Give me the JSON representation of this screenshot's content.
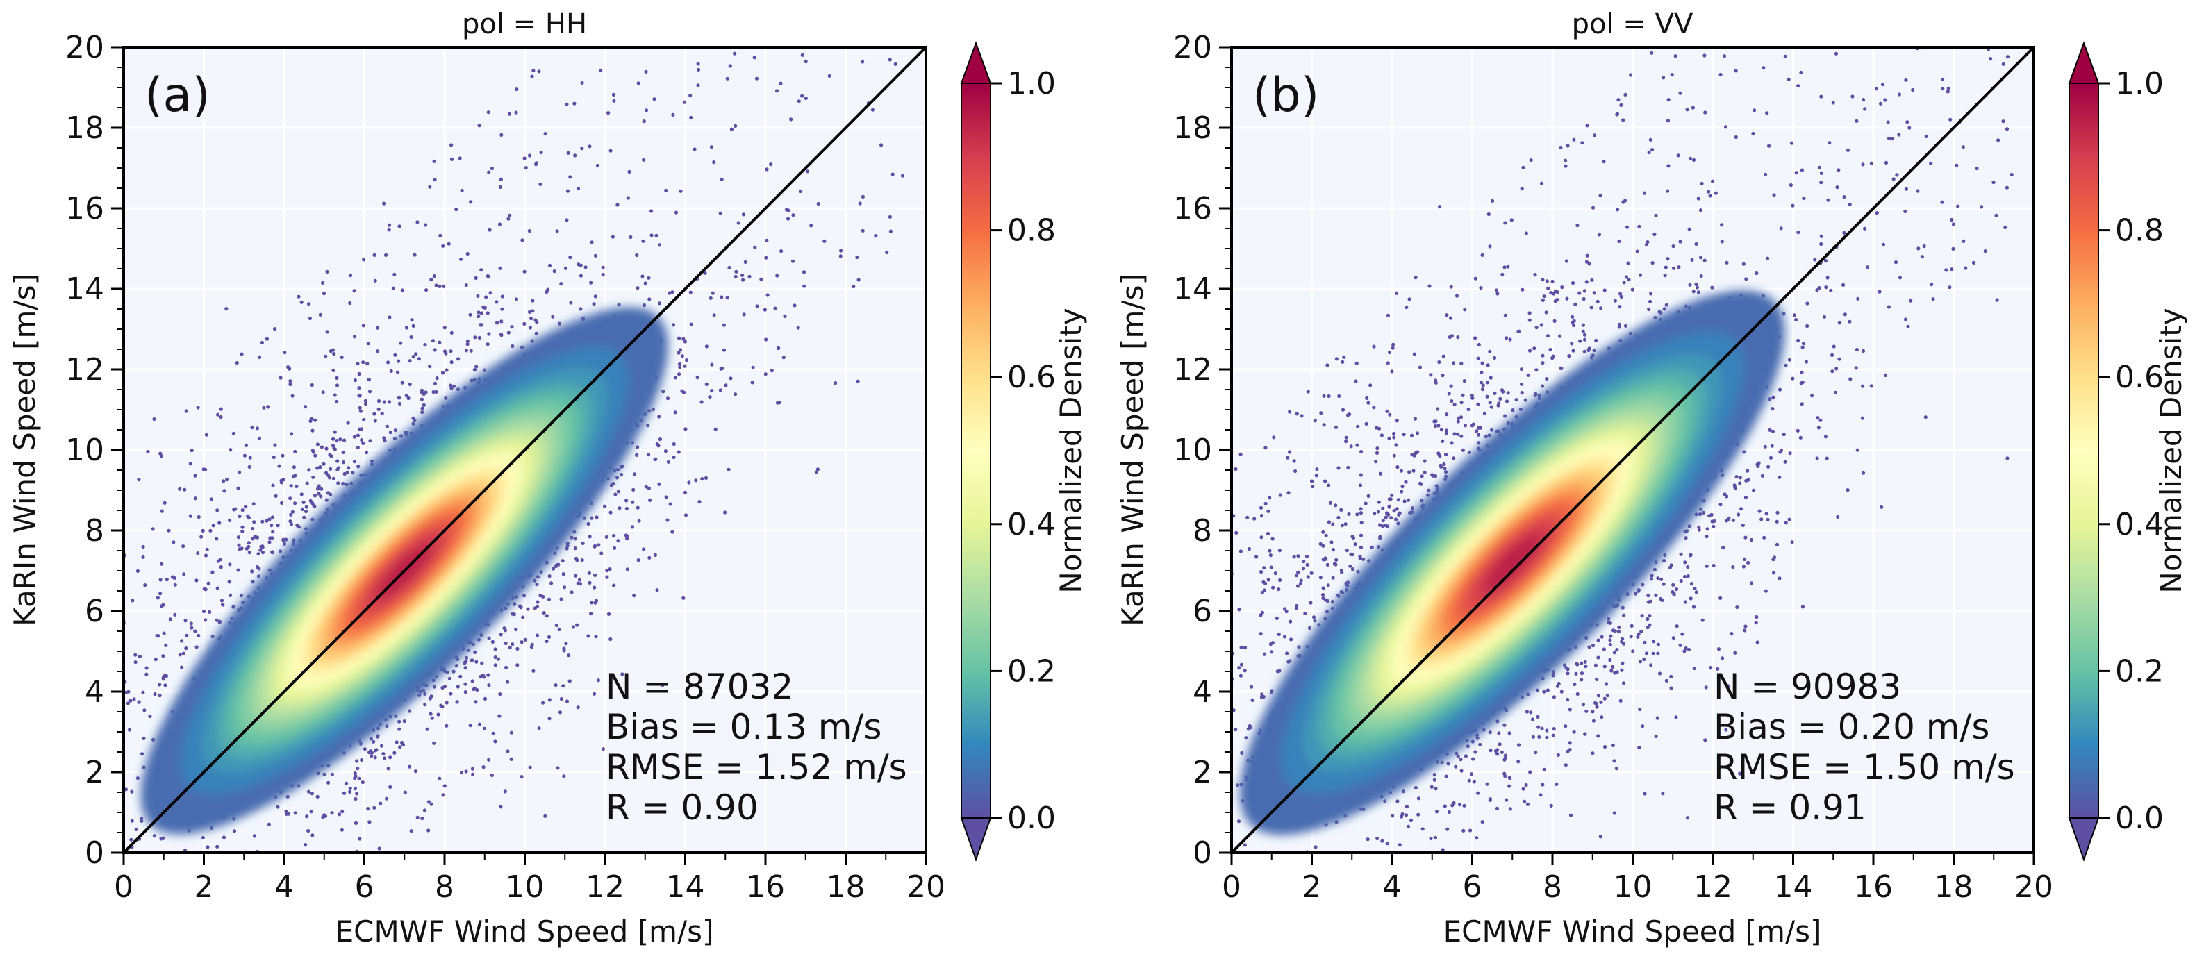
{
  "chart_data": [
    {
      "type": "scatter",
      "panel_label": "(a)",
      "title": "pol = HH",
      "xlabel": "ECMWF Wind Speed [m/s]",
      "ylabel": "KaRIn Wind Speed [m/s]",
      "xlim": [
        0,
        20
      ],
      "ylim": [
        0,
        20
      ],
      "x_ticks": [
        "0",
        "2",
        "4",
        "6",
        "8",
        "10",
        "12",
        "14",
        "16",
        "18",
        "20"
      ],
      "y_ticks": [
        "0",
        "2",
        "4",
        "6",
        "8",
        "10",
        "12",
        "14",
        "16",
        "18",
        "20"
      ],
      "grid": true,
      "reference_line": "1:1",
      "density": {
        "center": [
          7.0,
          7.0
        ],
        "angle_deg": 45,
        "sigma_major": 3.2,
        "sigma_minor": 0.9
      },
      "stats": [
        "N = 87032",
        "Bias = 0.13 m/s",
        "RMSE = 1.52 m/s",
        "R = 0.90"
      ],
      "colorbar": {
        "label": "Normalized Density",
        "range": [
          0,
          1
        ],
        "ticks": [
          "0.0",
          "0.2",
          "0.4",
          "0.6",
          "0.8",
          "1.0"
        ],
        "colormap": [
          "#5e4fa2",
          "#3288bd",
          "#66c2a5",
          "#abdda4",
          "#e6f598",
          "#ffffbf",
          "#fee08b",
          "#fdae61",
          "#f46d43",
          "#d53e4f",
          "#9e0142"
        ]
      }
    },
    {
      "type": "scatter",
      "panel_label": "(b)",
      "title": "pol = VV",
      "xlabel": "ECMWF Wind Speed [m/s]",
      "ylabel": "KaRIn Wind Speed [m/s]",
      "xlim": [
        0,
        20
      ],
      "ylim": [
        0,
        20
      ],
      "x_ticks": [
        "0",
        "2",
        "4",
        "6",
        "8",
        "10",
        "12",
        "14",
        "16",
        "18",
        "20"
      ],
      "y_ticks": [
        "0",
        "2",
        "4",
        "6",
        "8",
        "10",
        "12",
        "14",
        "16",
        "18",
        "20"
      ],
      "grid": true,
      "reference_line": "1:1",
      "density": {
        "center": [
          7.0,
          7.2
        ],
        "angle_deg": 45,
        "sigma_major": 3.3,
        "sigma_minor": 0.95
      },
      "stats": [
        "N = 90983",
        "Bias = 0.20 m/s",
        "RMSE = 1.50 m/s",
        "R = 0.91"
      ],
      "colorbar": {
        "label": "Normalized Density",
        "range": [
          0,
          1
        ],
        "ticks": [
          "0.0",
          "0.2",
          "0.4",
          "0.6",
          "0.8",
          "1.0"
        ],
        "colormap": [
          "#5e4fa2",
          "#3288bd",
          "#66c2a5",
          "#abdda4",
          "#e6f598",
          "#ffffbf",
          "#fee08b",
          "#fdae61",
          "#f46d43",
          "#d53e4f",
          "#9e0142"
        ]
      }
    }
  ]
}
